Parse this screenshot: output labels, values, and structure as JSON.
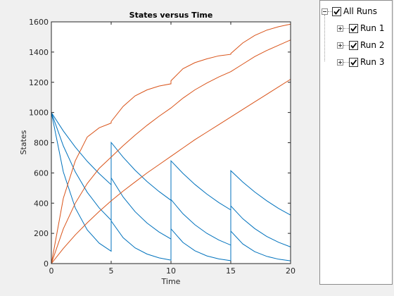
{
  "chart_data": {
    "type": "line",
    "title": "States versus Time",
    "xlabel": "Time",
    "ylabel": "States",
    "xlim": [
      0,
      20
    ],
    "ylim": [
      0,
      1600
    ],
    "x_ticks": [
      "0",
      "5",
      "10",
      "15",
      "20"
    ],
    "y_ticks": [
      "0",
      "200",
      "400",
      "600",
      "800",
      "1000",
      "1200",
      "1400",
      "1600"
    ],
    "grid": false,
    "colors": {
      "decaying": "#0072bd",
      "growing": "#d95319"
    },
    "series": [
      {
        "color": "decaying",
        "points": [
          [
            0,
            1000
          ],
          [
            1,
            878
          ],
          [
            2,
            771
          ],
          [
            3,
            677
          ],
          [
            4,
            595
          ],
          [
            5,
            522
          ],
          [
            5,
            802
          ],
          [
            6,
            704
          ],
          [
            7,
            618
          ],
          [
            8,
            543
          ],
          [
            9,
            477
          ],
          [
            10,
            419
          ],
          [
            10,
            680
          ],
          [
            11,
            597
          ],
          [
            12,
            524
          ],
          [
            13,
            460
          ],
          [
            14,
            404
          ],
          [
            15,
            355
          ],
          [
            15,
            615
          ],
          [
            16,
            540
          ],
          [
            17,
            474
          ],
          [
            18,
            416
          ],
          [
            19,
            365
          ],
          [
            20,
            321
          ]
        ]
      },
      {
        "color": "decaying",
        "points": [
          [
            0,
            1000
          ],
          [
            1,
            779
          ],
          [
            2,
            607
          ],
          [
            3,
            472
          ],
          [
            4,
            368
          ],
          [
            5,
            287
          ],
          [
            5,
            567
          ],
          [
            6,
            441
          ],
          [
            7,
            344
          ],
          [
            8,
            268
          ],
          [
            9,
            209
          ],
          [
            10,
            163
          ],
          [
            10,
            424
          ],
          [
            11,
            330
          ],
          [
            12,
            257
          ],
          [
            13,
            200
          ],
          [
            14,
            156
          ],
          [
            15,
            122
          ],
          [
            15,
            382
          ],
          [
            16,
            297
          ],
          [
            17,
            232
          ],
          [
            18,
            180
          ],
          [
            19,
            141
          ],
          [
            20,
            110
          ]
        ]
      },
      {
        "color": "decaying",
        "points": [
          [
            0,
            1000
          ],
          [
            1,
            607
          ],
          [
            2,
            368
          ],
          [
            3,
            223
          ],
          [
            4,
            135
          ],
          [
            5,
            82
          ],
          [
            5,
            282
          ],
          [
            6,
            171
          ],
          [
            7,
            104
          ],
          [
            8,
            63
          ],
          [
            9,
            38
          ],
          [
            10,
            23
          ],
          [
            10,
            230
          ],
          [
            11,
            140
          ],
          [
            12,
            85
          ],
          [
            13,
            51
          ],
          [
            14,
            31
          ],
          [
            15,
            19
          ],
          [
            15,
            215
          ],
          [
            16,
            130
          ],
          [
            17,
            79
          ],
          [
            18,
            48
          ],
          [
            19,
            29
          ],
          [
            20,
            18
          ]
        ]
      },
      {
        "color": "growing",
        "points": [
          [
            0,
            0
          ],
          [
            1,
            432
          ],
          [
            2,
            680
          ],
          [
            3,
            838
          ],
          [
            4,
            899
          ],
          [
            5,
            930
          ],
          [
            5,
            940
          ],
          [
            6,
            1040
          ],
          [
            7,
            1110
          ],
          [
            8,
            1150
          ],
          [
            9,
            1175
          ],
          [
            10,
            1190
          ],
          [
            10,
            1210
          ],
          [
            11,
            1290
          ],
          [
            12,
            1330
          ],
          [
            13,
            1355
          ],
          [
            14,
            1375
          ],
          [
            15,
            1385
          ],
          [
            15,
            1390
          ],
          [
            16,
            1460
          ],
          [
            17,
            1510
          ],
          [
            18,
            1545
          ],
          [
            19,
            1568
          ],
          [
            20,
            1585
          ]
        ]
      },
      {
        "color": "growing",
        "points": [
          [
            0,
            0
          ],
          [
            1,
            230
          ],
          [
            2,
            400
          ],
          [
            3,
            530
          ],
          [
            4,
            630
          ],
          [
            5,
            705
          ],
          [
            6,
            780
          ],
          [
            7,
            850
          ],
          [
            8,
            915
          ],
          [
            9,
            975
          ],
          [
            10,
            1030
          ],
          [
            11,
            1095
          ],
          [
            12,
            1150
          ],
          [
            13,
            1195
          ],
          [
            14,
            1235
          ],
          [
            15,
            1270
          ],
          [
            16,
            1320
          ],
          [
            17,
            1370
          ],
          [
            18,
            1410
          ],
          [
            19,
            1445
          ],
          [
            20,
            1480
          ]
        ]
      },
      {
        "color": "growing",
        "points": [
          [
            0,
            0
          ],
          [
            1,
            100
          ],
          [
            2,
            190
          ],
          [
            3,
            270
          ],
          [
            4,
            345
          ],
          [
            5,
            415
          ],
          [
            6,
            480
          ],
          [
            7,
            540
          ],
          [
            8,
            600
          ],
          [
            9,
            655
          ],
          [
            10,
            710
          ],
          [
            11,
            765
          ],
          [
            12,
            820
          ],
          [
            13,
            870
          ],
          [
            14,
            920
          ],
          [
            15,
            970
          ],
          [
            16,
            1020
          ],
          [
            17,
            1070
          ],
          [
            18,
            1120
          ],
          [
            19,
            1170
          ],
          [
            20,
            1220
          ]
        ]
      }
    ]
  },
  "tree": {
    "root_label": "All Runs",
    "items": [
      {
        "label": "Run 1"
      },
      {
        "label": "Run 2"
      },
      {
        "label": "Run 3"
      }
    ]
  }
}
